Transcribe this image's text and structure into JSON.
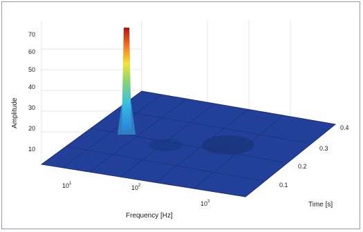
{
  "chart_data": {
    "type": "surface",
    "title": "",
    "xlabel": "Frequency [Hz]",
    "ylabel": "Time [s]",
    "zlabel": "Amplitude",
    "x_scale": "log",
    "x_ticks": [
      "10",
      "10",
      "10"
    ],
    "x_tick_exponents": [
      "1",
      "2",
      "3"
    ],
    "y_ticks": [
      "0.1",
      "0.2",
      "0.3",
      "0.4"
    ],
    "z_ticks": [
      "10",
      "20",
      "30",
      "40",
      "50",
      "60",
      "70"
    ],
    "zlim": [
      0,
      78
    ],
    "peak": {
      "frequency_hz": 50,
      "time_s": 0.4,
      "amplitude": 78
    },
    "colormap": [
      "#00008f",
      "#0000ff",
      "#00ffff",
      "#ffff00",
      "#ff0000",
      "#800000"
    ],
    "surface_color": "#1f3f9a",
    "grid": true
  }
}
